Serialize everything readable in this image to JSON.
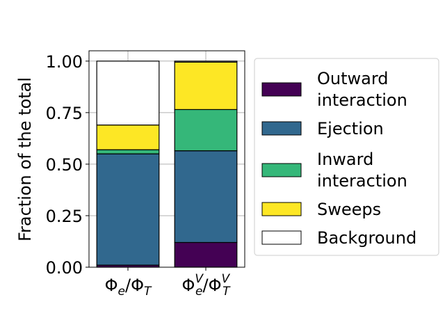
{
  "chart_data": {
    "type": "bar",
    "stacked": true,
    "categories": [
      "Φ_e/Φ_T",
      "Φ_e^V/Φ_T^V"
    ],
    "series": [
      {
        "name": "Outward interaction",
        "color": "#440154",
        "values": [
          0.01,
          0.12
        ]
      },
      {
        "name": "Ejection",
        "color": "#31688e",
        "values": [
          0.54,
          0.445
        ]
      },
      {
        "name": "Inward interaction",
        "color": "#35b779",
        "values": [
          0.02,
          0.2
        ]
      },
      {
        "name": "Sweeps",
        "color": "#fde725",
        "values": [
          0.12,
          0.23
        ]
      },
      {
        "name": "Background",
        "color": "#ffffff",
        "values": [
          0.31,
          0.005
        ]
      }
    ],
    "title": "",
    "xlabel": "",
    "ylabel": "Fraction of the total",
    "ylim": [
      0,
      1.05
    ],
    "yticks": [
      0.0,
      0.25,
      0.5,
      0.75,
      1.0
    ],
    "ytick_labels": [
      "0.00",
      "0.25",
      "0.50",
      "0.75",
      "1.00"
    ],
    "grid": true,
    "legend_position": "right"
  }
}
